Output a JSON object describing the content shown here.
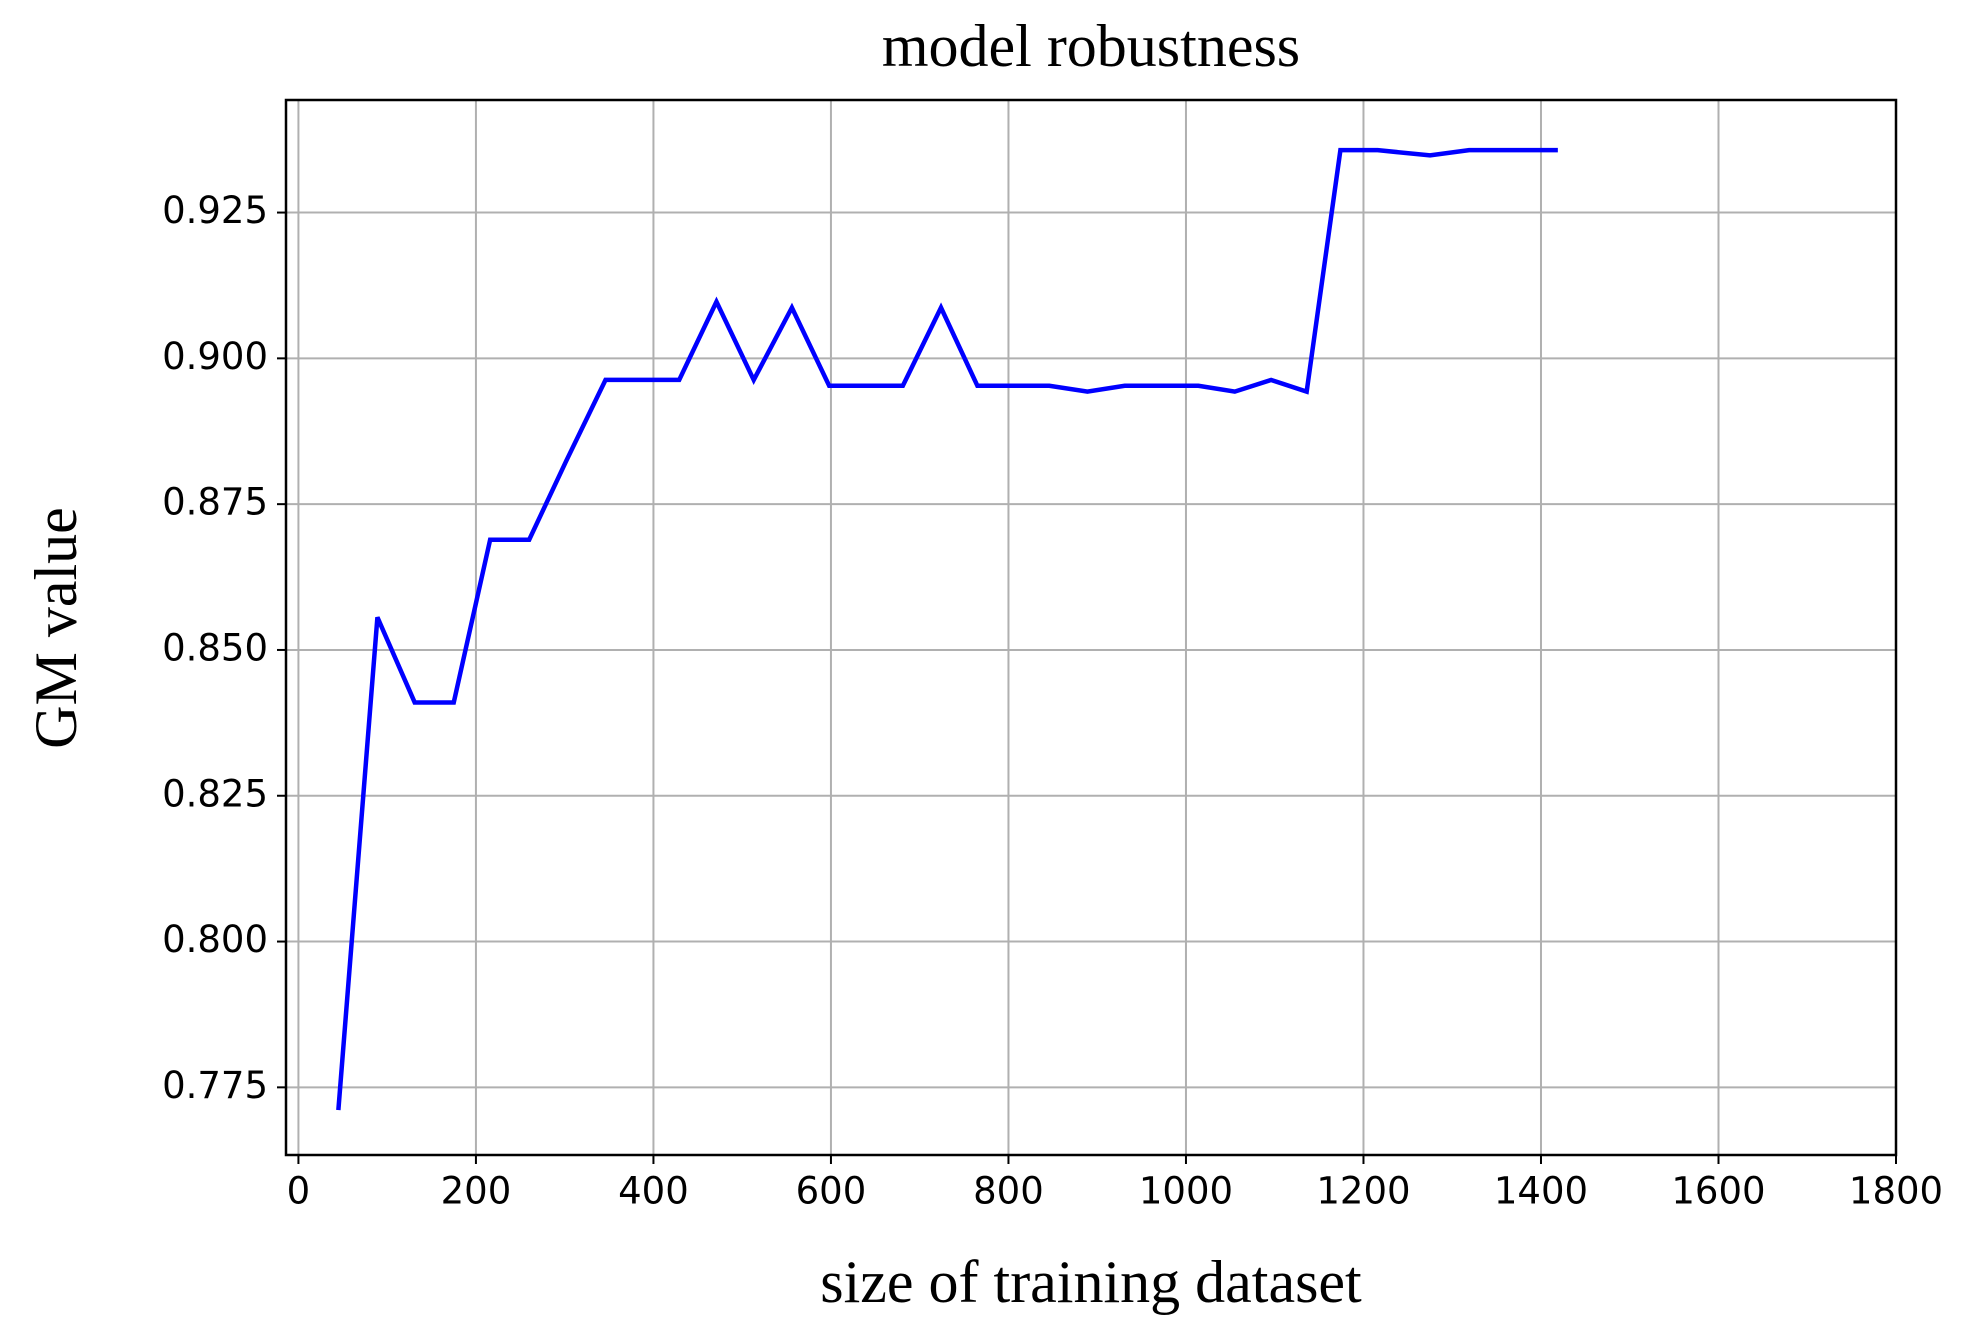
{
  "chart_data": {
    "type": "line",
    "title": "model robustness",
    "x_label": "size of training dataset",
    "y_label": "GM value",
    "x": [
      45,
      89,
      131,
      175,
      216,
      260,
      302,
      346,
      388,
      429,
      471,
      513,
      556,
      598,
      640,
      681,
      724,
      765,
      805,
      846,
      889,
      931,
      972,
      1014,
      1055,
      1096,
      1136,
      1174,
      1216,
      1275,
      1319,
      1376,
      1419
    ],
    "series": [
      {
        "name": "GM value",
        "color": "#0000ff",
        "values": [
          0.7711,
          0.8556,
          0.841,
          0.841,
          0.8689,
          0.8689,
          0.8825,
          0.8963,
          0.8963,
          0.8963,
          0.9097,
          0.8963,
          0.9087,
          0.8953,
          0.8953,
          0.8953,
          0.9087,
          0.8953,
          0.8953,
          0.8953,
          0.8943,
          0.8953,
          0.8953,
          0.8953,
          0.8943,
          0.8963,
          0.8943,
          0.9357,
          0.9357,
          0.9348,
          0.9357,
          0.9357,
          0.9357
        ]
      }
    ],
    "xlim": [
      -14,
      1800
    ],
    "xticks": [
      0,
      200,
      400,
      600,
      800,
      1000,
      1200,
      1400,
      1600,
      1800
    ],
    "ylim": [
      0.7634,
      0.9443
    ],
    "yticks": [
      0.775,
      {
        "value": 0.8,
        "label": "0.800"
      },
      0.825,
      {
        "value": 0.85,
        "label": "0.850"
      },
      0.875,
      {
        "value": 0.9,
        "label": "0.900"
      },
      0.925
    ],
    "grid": true
  }
}
